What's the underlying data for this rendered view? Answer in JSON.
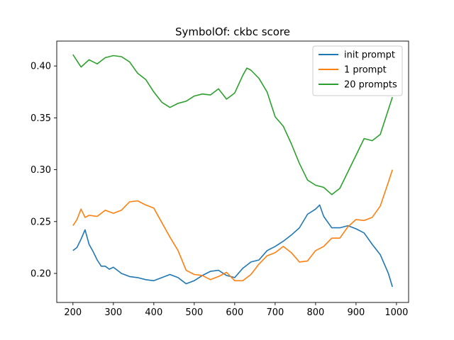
{
  "chart_data": {
    "type": "line",
    "title": "SymbolOf: ckbc score",
    "xlabel": "",
    "ylabel": "",
    "xlim": [
      160,
      1030
    ],
    "ylim": [
      0.172,
      0.424
    ],
    "xticks": [
      200,
      300,
      400,
      500,
      600,
      700,
      800,
      900,
      1000
    ],
    "yticks": [
      0.2,
      0.25,
      0.3,
      0.35,
      0.4
    ],
    "ytick_labels": [
      "0.20",
      "0.25",
      "0.30",
      "0.35",
      "0.40"
    ],
    "grid": false,
    "legend_position": "top-right",
    "series": [
      {
        "name": "init prompt",
        "color": "#1f77b4",
        "x": [
          200,
          210,
          220,
          230,
          240,
          250,
          260,
          270,
          280,
          290,
          300,
          320,
          340,
          360,
          380,
          400,
          420,
          440,
          460,
          480,
          500,
          520,
          540,
          560,
          580,
          600,
          620,
          640,
          660,
          680,
          700,
          720,
          740,
          760,
          780,
          800,
          810,
          820,
          840,
          860,
          880,
          900,
          920,
          940,
          960,
          980,
          990
        ],
        "values": [
          0.222,
          0.225,
          0.233,
          0.242,
          0.228,
          0.221,
          0.213,
          0.207,
          0.207,
          0.204,
          0.206,
          0.2,
          0.197,
          0.196,
          0.194,
          0.193,
          0.196,
          0.199,
          0.196,
          0.19,
          0.193,
          0.198,
          0.202,
          0.203,
          0.198,
          0.196,
          0.205,
          0.211,
          0.213,
          0.222,
          0.226,
          0.231,
          0.237,
          0.244,
          0.257,
          0.262,
          0.266,
          0.255,
          0.244,
          0.244,
          0.246,
          0.243,
          0.239,
          0.228,
          0.218,
          0.2,
          0.187
        ]
      },
      {
        "name": "1 prompt",
        "color": "#ff7f0e",
        "x": [
          200,
          210,
          220,
          230,
          240,
          260,
          280,
          300,
          320,
          340,
          360,
          380,
          400,
          420,
          440,
          460,
          480,
          500,
          520,
          540,
          560,
          580,
          600,
          620,
          640,
          660,
          680,
          700,
          720,
          740,
          760,
          780,
          800,
          820,
          840,
          860,
          880,
          900,
          920,
          940,
          960,
          980,
          990
        ],
        "values": [
          0.246,
          0.252,
          0.262,
          0.254,
          0.256,
          0.255,
          0.261,
          0.258,
          0.261,
          0.269,
          0.27,
          0.266,
          0.263,
          0.249,
          0.235,
          0.222,
          0.203,
          0.199,
          0.198,
          0.194,
          0.197,
          0.201,
          0.193,
          0.193,
          0.199,
          0.209,
          0.217,
          0.22,
          0.226,
          0.22,
          0.211,
          0.212,
          0.222,
          0.226,
          0.234,
          0.234,
          0.245,
          0.252,
          0.251,
          0.254,
          0.265,
          0.288,
          0.3
        ]
      },
      {
        "name": "20 prompts",
        "color": "#2ca02c",
        "x": [
          200,
          210,
          220,
          240,
          260,
          280,
          300,
          320,
          340,
          360,
          380,
          400,
          420,
          440,
          460,
          480,
          500,
          520,
          540,
          560,
          580,
          600,
          620,
          630,
          640,
          660,
          680,
          700,
          720,
          740,
          760,
          780,
          800,
          820,
          840,
          860,
          880,
          900,
          920,
          940,
          960,
          980,
          990
        ],
        "values": [
          0.411,
          0.405,
          0.399,
          0.406,
          0.402,
          0.408,
          0.41,
          0.409,
          0.404,
          0.393,
          0.387,
          0.375,
          0.365,
          0.36,
          0.364,
          0.366,
          0.371,
          0.373,
          0.372,
          0.378,
          0.368,
          0.374,
          0.391,
          0.398,
          0.396,
          0.388,
          0.375,
          0.351,
          0.342,
          0.325,
          0.306,
          0.29,
          0.285,
          0.283,
          0.276,
          0.282,
          0.298,
          0.314,
          0.33,
          0.328,
          0.334,
          0.358,
          0.37
        ]
      }
    ]
  }
}
